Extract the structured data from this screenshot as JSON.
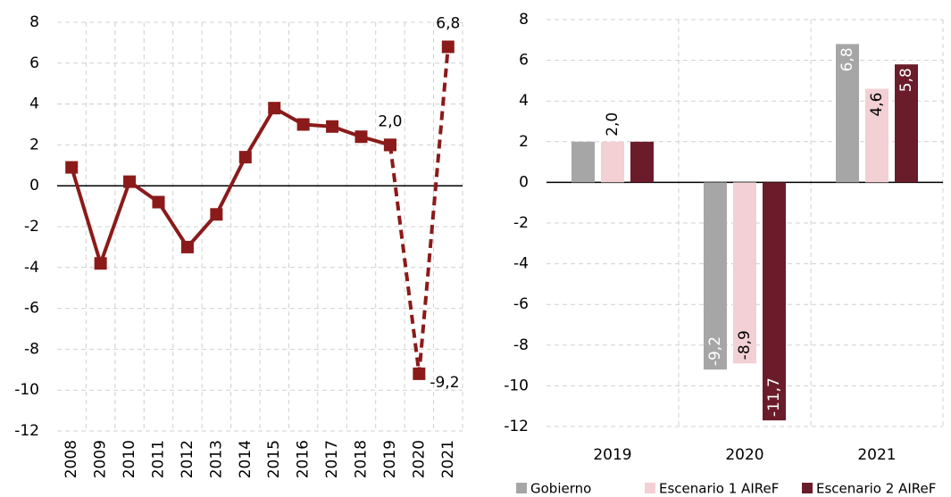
{
  "chart_data": [
    {
      "type": "line",
      "categories": [
        "2008",
        "2009",
        "2010",
        "2011",
        "2012",
        "2013",
        "2014",
        "2015",
        "2016",
        "2017",
        "2018",
        "2019",
        "2020",
        "2021"
      ],
      "series": [
        {
          "color": "#8b1a1a",
          "dash": false,
          "values": [
            0.9,
            -3.8,
            0.2,
            -0.8,
            -3.0,
            -1.4,
            1.4,
            3.8,
            3.0,
            2.9,
            2.4,
            2.0,
            null,
            null
          ]
        },
        {
          "color": "#8b1a1a",
          "dash": true,
          "values": [
            null,
            null,
            null,
            null,
            null,
            null,
            null,
            null,
            null,
            null,
            null,
            2.0,
            -9.2,
            6.8
          ]
        }
      ],
      "value_labels": [
        null,
        null,
        null,
        null,
        null,
        null,
        null,
        null,
        null,
        null,
        null,
        "2,0",
        "-9,2",
        "6,8"
      ],
      "ylim": [
        -12,
        8
      ],
      "yticks": [
        -12,
        -10,
        -8,
        -6,
        -4,
        -2,
        0,
        2,
        4,
        6,
        8
      ],
      "grid": true
    },
    {
      "type": "bar",
      "categories": [
        "2019",
        "2020",
        "2021"
      ],
      "series": [
        {
          "name": "Gobierno",
          "color": "#a6a6a6",
          "label_color": "#ffffff",
          "values": [
            2.0,
            -9.2,
            6.8
          ],
          "value_labels": [
            null,
            "-9,2",
            "6,8"
          ]
        },
        {
          "name": "Escenario 1 AIReF",
          "color": "#f2d0d4",
          "label_color": "#000000",
          "values": [
            2.0,
            -8.9,
            4.6
          ],
          "value_labels": [
            "2,0",
            "-8,9",
            "4,6"
          ]
        },
        {
          "name": "Escenario 2 AIReF",
          "color": "#6b1c2a",
          "label_color": "#ffffff",
          "values": [
            2.0,
            -11.7,
            5.8
          ],
          "value_labels": [
            null,
            "-11,7",
            "5,8"
          ]
        }
      ],
      "ylim": [
        -12,
        8
      ],
      "yticks": [
        -12,
        -10,
        -8,
        -6,
        -4,
        -2,
        0,
        2,
        4,
        6,
        8
      ],
      "grid": true,
      "legend": "bottom"
    }
  ]
}
